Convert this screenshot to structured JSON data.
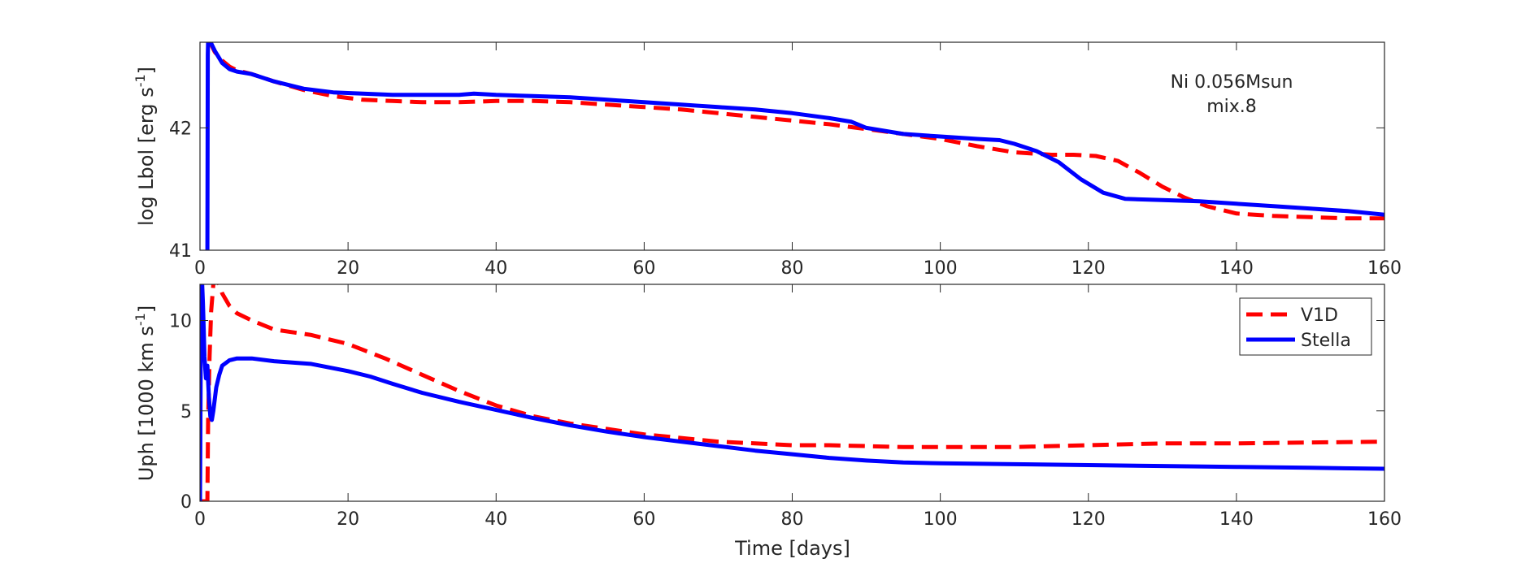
{
  "chart_data": [
    {
      "type": "line",
      "panel": "top",
      "title": "",
      "xlabel": "",
      "ylabel": "log Lbol [erg s",
      "ylabel_sup": "-1",
      "ylabel_close": "]",
      "xlim": [
        0,
        160
      ],
      "ylim": [
        41,
        42.7
      ],
      "xticks": [
        0,
        20,
        40,
        60,
        80,
        100,
        120,
        140,
        160
      ],
      "xtick_labels": [
        "0",
        "20",
        "40",
        "60",
        "80",
        "100",
        "120",
        "140",
        "160"
      ],
      "yticks": [
        41,
        42
      ],
      "ytick_labels": [
        "41",
        "42"
      ],
      "grid": false,
      "annotation": [
        "Ni 0.056Msun",
        "mix.8"
      ],
      "series": [
        {
          "name": "V1D",
          "color": "#ff0000",
          "style": "dashed",
          "x": [
            1.2,
            2,
            3,
            4,
            5,
            7,
            10,
            14,
            18,
            22,
            26,
            30,
            35,
            40,
            45,
            50,
            55,
            60,
            65,
            70,
            75,
            80,
            85,
            90,
            95,
            100,
            105,
            110,
            115,
            118,
            121,
            124,
            127,
            130,
            133,
            136,
            140,
            145,
            150,
            155,
            160
          ],
          "y": [
            42.72,
            42.62,
            42.55,
            42.5,
            42.47,
            42.44,
            42.38,
            42.31,
            42.26,
            42.23,
            42.22,
            42.21,
            42.21,
            42.22,
            42.22,
            42.21,
            42.19,
            42.17,
            42.15,
            42.12,
            42.09,
            42.06,
            42.03,
            41.99,
            41.95,
            41.91,
            41.85,
            41.8,
            41.78,
            41.78,
            41.77,
            41.73,
            41.63,
            41.52,
            41.43,
            41.36,
            41.3,
            41.28,
            41.27,
            41.26,
            41.26
          ]
        },
        {
          "name": "Stella",
          "color": "#0000ff",
          "style": "solid",
          "x": [
            1.0,
            1.05,
            1.1,
            1.3,
            1.6,
            2,
            3,
            4,
            5,
            7,
            10,
            14,
            18,
            22,
            26,
            30,
            35,
            37,
            40,
            45,
            50,
            55,
            60,
            65,
            70,
            75,
            80,
            85,
            88,
            90,
            95,
            100,
            105,
            108,
            110,
            113,
            116,
            119,
            122,
            125,
            130,
            135,
            140,
            145,
            150,
            155,
            160
          ],
          "y": [
            41.0,
            42.6,
            42.72,
            42.72,
            42.68,
            42.63,
            42.53,
            42.48,
            42.46,
            42.44,
            42.38,
            42.32,
            42.29,
            42.28,
            42.27,
            42.27,
            42.27,
            42.28,
            42.27,
            42.26,
            42.25,
            42.23,
            42.21,
            42.19,
            42.17,
            42.15,
            42.12,
            42.08,
            42.05,
            42.0,
            41.95,
            41.93,
            41.91,
            41.9,
            41.87,
            41.81,
            41.72,
            41.58,
            41.47,
            41.42,
            41.41,
            41.4,
            41.38,
            41.36,
            41.34,
            41.32,
            41.29
          ]
        }
      ]
    },
    {
      "type": "line",
      "panel": "bottom",
      "title": "",
      "xlabel": "Time [days]",
      "ylabel": "Uph [1000 km s",
      "ylabel_sup": "-1",
      "ylabel_close": "]",
      "xlim": [
        0,
        160
      ],
      "ylim": [
        0,
        12
      ],
      "xticks": [
        0,
        20,
        40,
        60,
        80,
        100,
        120,
        140,
        160
      ],
      "xtick_labels": [
        "0",
        "20",
        "40",
        "60",
        "80",
        "100",
        "120",
        "140",
        "160"
      ],
      "yticks": [
        0,
        5,
        10
      ],
      "ytick_labels": [
        "0",
        "5",
        "10"
      ],
      "grid": false,
      "legend": "top-right",
      "series": [
        {
          "name": "V1D",
          "color": "#ff0000",
          "style": "dashed",
          "x": [
            0.2,
            1.0,
            1.1,
            1.3,
            1.5,
            1.8,
            2.2,
            2.6,
            3,
            4,
            5,
            7,
            10,
            15,
            20,
            25,
            30,
            35,
            40,
            45,
            50,
            55,
            60,
            65,
            70,
            75,
            80,
            85,
            90,
            95,
            100,
            105,
            110,
            115,
            120,
            125,
            130,
            135,
            140,
            150,
            160
          ],
          "y": [
            0,
            0,
            4.5,
            8,
            10.5,
            12,
            12.3,
            12,
            11.5,
            10.8,
            10.4,
            10,
            9.5,
            9.2,
            8.7,
            7.9,
            7.0,
            6.1,
            5.3,
            4.7,
            4.3,
            4.0,
            3.7,
            3.5,
            3.3,
            3.2,
            3.1,
            3.1,
            3.05,
            3.0,
            3.0,
            3.0,
            3.0,
            3.05,
            3.1,
            3.15,
            3.2,
            3.2,
            3.2,
            3.25,
            3.3
          ]
        },
        {
          "name": "Stella",
          "color": "#0000ff",
          "style": "solid",
          "x": [
            0,
            0.05,
            0.1,
            0.2,
            0.3,
            0.4,
            0.5,
            0.6,
            0.8,
            1.0,
            1.2,
            1.4,
            1.6,
            1.8,
            2.2,
            2.6,
            3,
            4,
            5,
            7,
            10,
            15,
            20,
            23,
            26,
            30,
            35,
            40,
            45,
            50,
            55,
            60,
            65,
            70,
            75,
            80,
            85,
            90,
            95,
            100,
            110,
            120,
            130,
            140,
            150,
            160
          ],
          "y": [
            0,
            4,
            8,
            12,
            12,
            11,
            9.5,
            8,
            6.8,
            7.5,
            5.8,
            4.7,
            4.5,
            5.0,
            6.3,
            7.0,
            7.5,
            7.8,
            7.9,
            7.9,
            7.75,
            7.6,
            7.2,
            6.9,
            6.5,
            6.0,
            5.5,
            5.05,
            4.6,
            4.2,
            3.85,
            3.55,
            3.3,
            3.05,
            2.8,
            2.6,
            2.4,
            2.25,
            2.15,
            2.1,
            2.05,
            2.0,
            1.95,
            1.9,
            1.85,
            1.8
          ]
        }
      ]
    }
  ]
}
